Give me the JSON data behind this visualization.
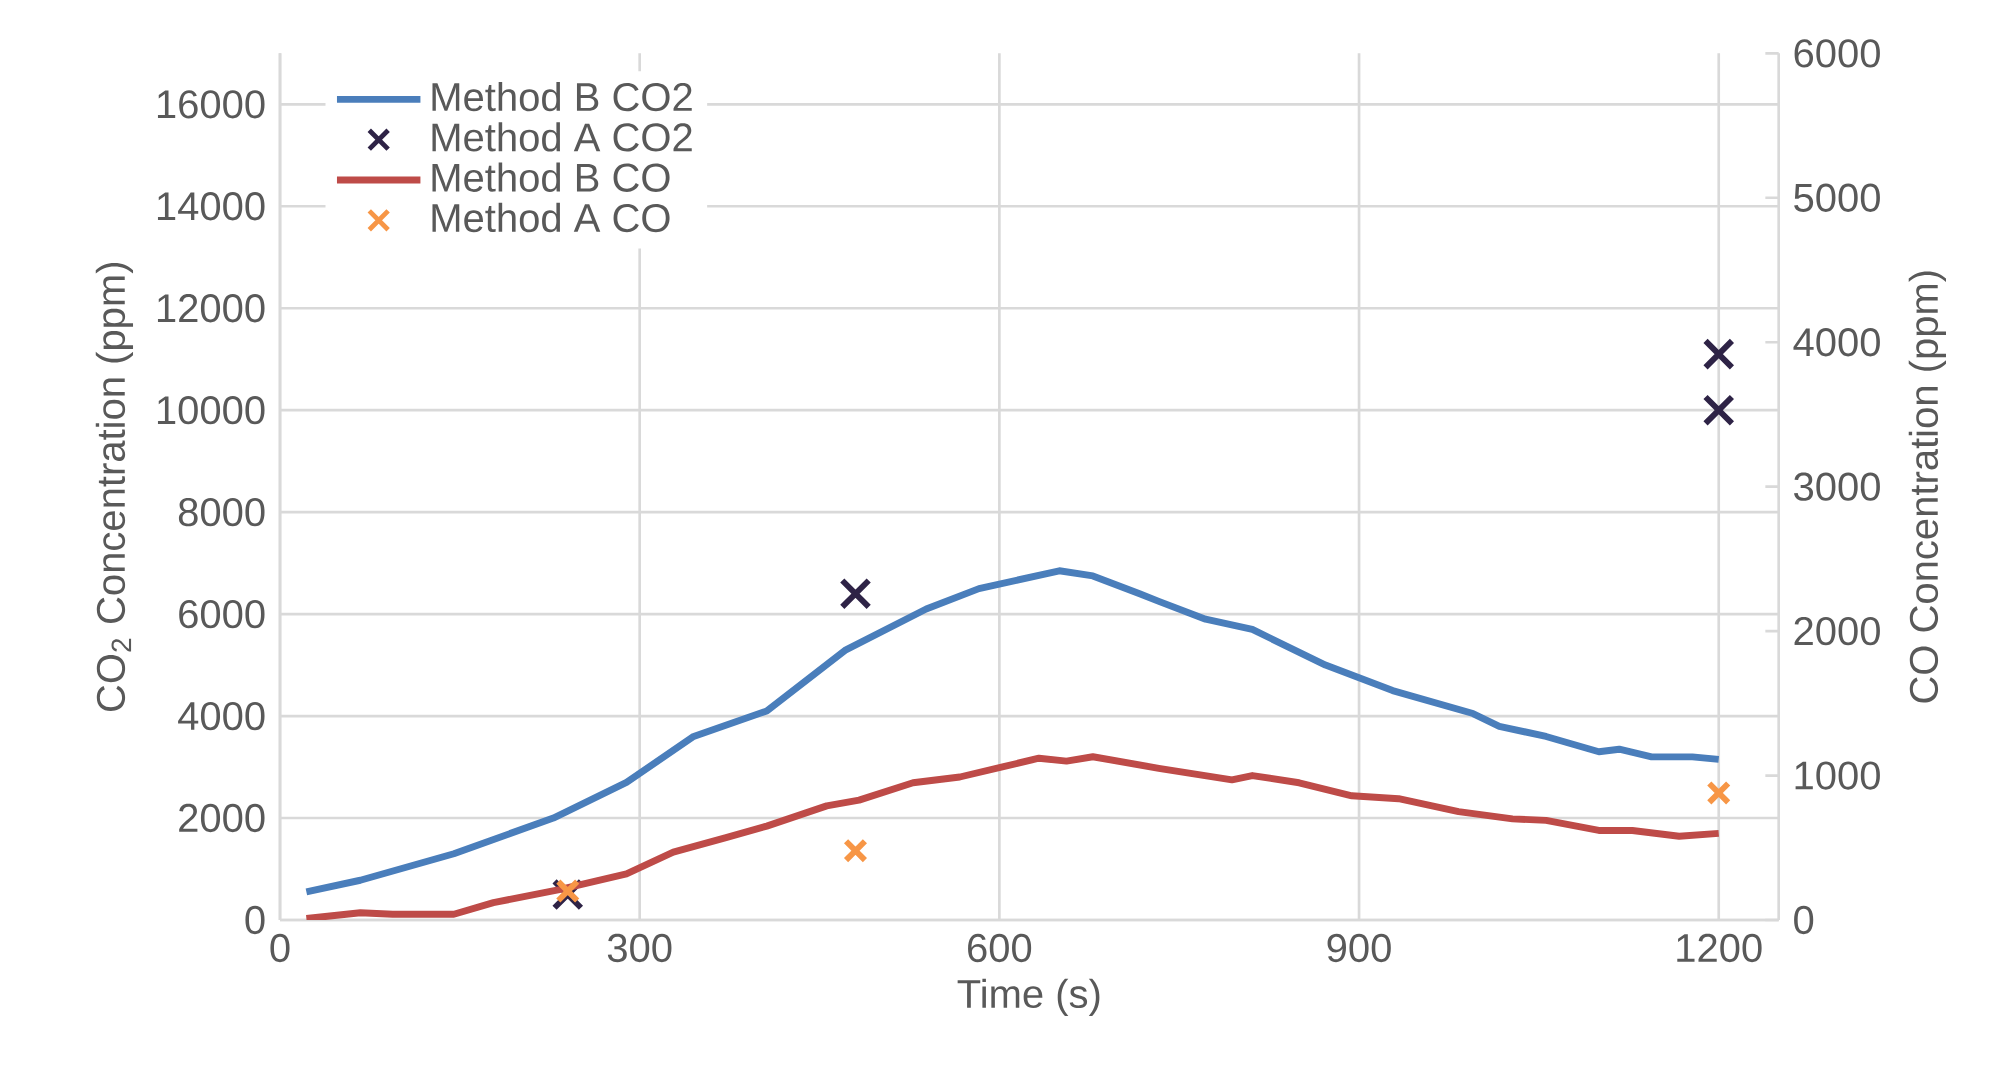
{
  "chart_data": {
    "type": "line",
    "xlabel": "Time (s)",
    "ylabel": "CO$_{2}$ Concentration (ppm)",
    "y2label": "CO Concentration (ppm)",
    "xlim": [
      0,
      1250
    ],
    "xticks": [
      0,
      300,
      600,
      900,
      1200
    ],
    "ylim": [
      0,
      17000
    ],
    "yticks": [
      0,
      2000,
      4000,
      6000,
      8000,
      10000,
      12000,
      14000,
      16000
    ],
    "y2lim": [
      0,
      6000
    ],
    "y2ticks": [
      0,
      1000,
      2000,
      3000,
      4000,
      5000,
      6000
    ],
    "grid": true,
    "legend": "top left",
    "series": [
      {
        "name": "Method B CO2",
        "color": "#4a7ebb",
        "marker": "none",
        "axis": "y",
        "x": [
          22,
          67,
          145,
          228,
          289,
          345,
          406,
          472,
          539,
          583,
          650,
          678,
          717,
          733,
          772,
          811,
          872,
          928,
          995,
          1017,
          1056,
          1100,
          1117,
          1144,
          1178,
          1200
        ],
        "values": [
          550,
          780,
          1300,
          2000,
          2700,
          3600,
          4100,
          5300,
          6100,
          6500,
          6850,
          6750,
          6400,
          6250,
          5900,
          5700,
          5000,
          4500,
          4050,
          3800,
          3600,
          3300,
          3350,
          3200,
          3200,
          3150
        ]
      },
      {
        "name": "Method A CO2",
        "type": "scatter",
        "color": "#2e2346",
        "marker": "cross",
        "axis": "y",
        "x": [
          240,
          480,
          1200,
          1200
        ],
        "values": [
          500,
          6400,
          11100,
          10000
        ]
      },
      {
        "name": "Method B CO",
        "color": "#be4b48",
        "marker": "none",
        "axis": "y2",
        "x": [
          22,
          67,
          94,
          145,
          178,
          233,
          289,
          328,
          372,
          406,
          456,
          483,
          528,
          567,
          633,
          656,
          678,
          733,
          794,
          811,
          850,
          894,
          933,
          983,
          1028,
          1056,
          1100,
          1128,
          1167,
          1200
        ],
        "values": [
          10,
          50,
          40,
          40,
          120,
          210,
          320,
          470,
          570,
          650,
          790,
          830,
          950,
          990,
          1120,
          1100,
          1130,
          1050,
          970,
          1000,
          950,
          860,
          840,
          750,
          700,
          690,
          620,
          620,
          580,
          600
        ]
      },
      {
        "name": "Method A CO",
        "type": "scatter",
        "color": "#f79646",
        "marker": "cross",
        "axis": "y2",
        "x": [
          240,
          480,
          1200
        ],
        "values": [
          200,
          480,
          880
        ]
      }
    ]
  }
}
